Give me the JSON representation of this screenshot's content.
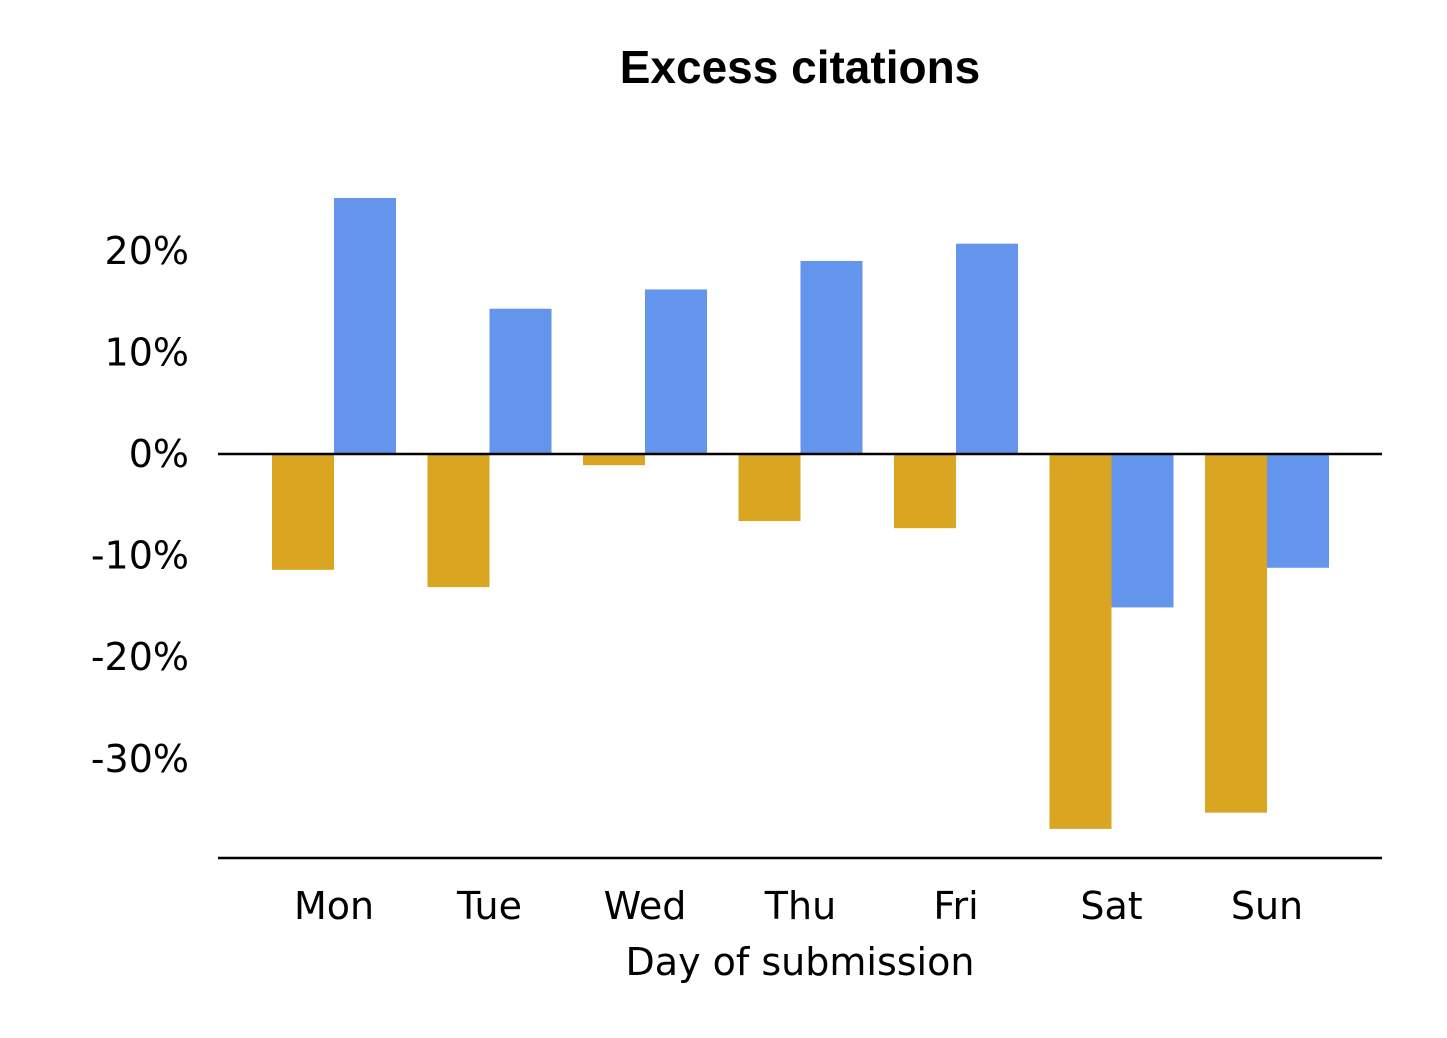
{
  "chart_data": {
    "type": "bar",
    "title": "Excess citations",
    "xlabel": "Day of submission",
    "ylabel": "",
    "categories": [
      "Mon",
      "Tue",
      "Wed",
      "Thu",
      "Fri",
      "Sat",
      "Sun"
    ],
    "series": [
      {
        "values": [
          -11.4,
          -13.1,
          -1.1,
          -6.6,
          -7.3,
          -36.9,
          -35.3
        ],
        "color": "#DAA520"
      },
      {
        "values": [
          25.2,
          14.3,
          16.2,
          19.0,
          20.7,
          -15.1,
          -11.2
        ],
        "color": "#6495ED"
      }
    ],
    "yticks": [
      20,
      10,
      0,
      -10,
      -20,
      -30
    ],
    "ytick_labels": [
      "20%",
      "10%",
      "0%",
      "-10%",
      "-20%",
      "-30%"
    ],
    "ylim": [
      -39.9,
      30
    ],
    "grid": false,
    "legend": "none"
  }
}
